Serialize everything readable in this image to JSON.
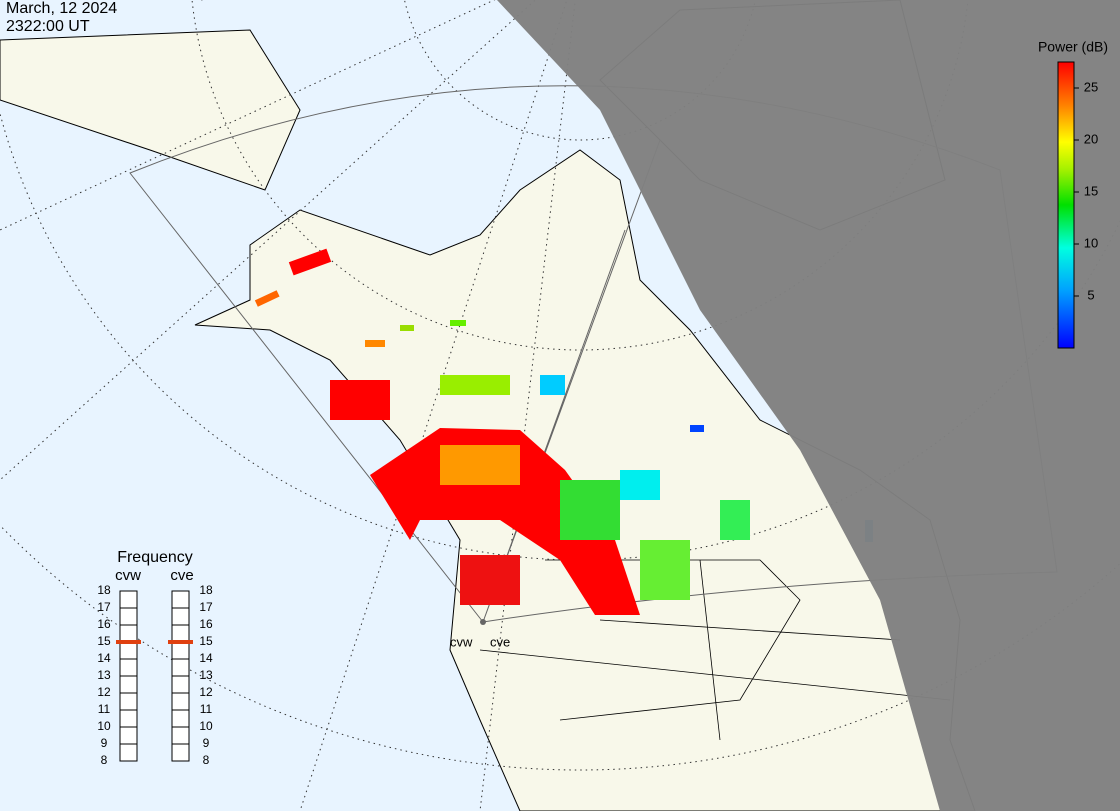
{
  "header": {
    "date": "March, 12 2024",
    "time": "2322:00 UT"
  },
  "colorbar": {
    "title": "Power (dB)",
    "range": [
      0,
      27.5
    ],
    "ticks": [
      5,
      10,
      15,
      20,
      25
    ]
  },
  "frequency": {
    "title": "Frequency",
    "range": [
      8,
      18
    ],
    "ticks": [
      8,
      9,
      10,
      11,
      12,
      13,
      14,
      15,
      16,
      17,
      18
    ],
    "radars": [
      {
        "name": "cvw",
        "value": 15
      },
      {
        "name": "cve",
        "value": 15
      }
    ]
  },
  "radar_labels": [
    "cvw",
    "cve"
  ]
}
